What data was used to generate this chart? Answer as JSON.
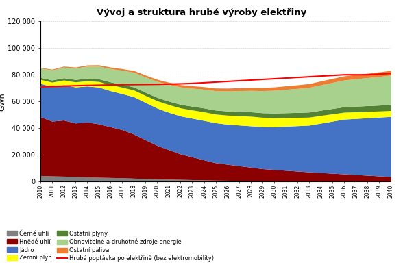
{
  "title": "Vývoj a struktura hrubé výroby elektřiny",
  "ylabel": "GWh",
  "years": [
    2010,
    2011,
    2012,
    2013,
    2014,
    2015,
    2016,
    2017,
    2018,
    2019,
    2020,
    2021,
    2022,
    2023,
    2024,
    2025,
    2026,
    2027,
    2028,
    2029,
    2030,
    2031,
    2032,
    2033,
    2034,
    2035,
    2036,
    2037,
    2038,
    2039,
    2040
  ],
  "cerne_uhli": [
    4500,
    4200,
    4000,
    3800,
    3500,
    3200,
    3000,
    2800,
    2500,
    2200,
    2000,
    1800,
    1600,
    1400,
    1200,
    1000,
    900,
    800,
    700,
    600,
    500,
    400,
    300,
    200,
    200,
    200,
    200,
    200,
    200,
    200,
    200
  ],
  "hnede_uhli": [
    44000,
    41000,
    42000,
    40000,
    41000,
    40000,
    38000,
    36000,
    33000,
    29000,
    25000,
    22000,
    19000,
    17000,
    15000,
    13000,
    12000,
    11000,
    10000,
    9000,
    8500,
    8000,
    7500,
    7000,
    6500,
    6000,
    5500,
    5000,
    4500,
    4000,
    3500
  ],
  "jadro": [
    25000,
    26000,
    26500,
    27000,
    27000,
    27500,
    27000,
    27000,
    28000,
    28000,
    28000,
    28000,
    28500,
    29000,
    29500,
    30000,
    30000,
    30500,
    31000,
    31500,
    32000,
    33000,
    34000,
    35000,
    37000,
    39000,
    41000,
    42000,
    43000,
    44000,
    45000
  ],
  "zemni_plyn": [
    3000,
    3200,
    3500,
    3800,
    4000,
    4200,
    4500,
    4800,
    5000,
    5200,
    5500,
    5800,
    6000,
    6200,
    6500,
    6500,
    6800,
    7000,
    7200,
    7000,
    6800,
    6500,
    6200,
    6000,
    5800,
    5500,
    5200,
    5000,
    4800,
    4600,
    4500
  ],
  "ostatni_plyny": [
    1500,
    1600,
    1700,
    1800,
    1900,
    2000,
    2100,
    2200,
    2300,
    2400,
    2500,
    2600,
    2700,
    2800,
    2900,
    3000,
    3100,
    3200,
    3300,
    3400,
    3500,
    3600,
    3700,
    3800,
    3900,
    4000,
    4100,
    4200,
    4300,
    4400,
    4500
  ],
  "obnovitelne": [
    7000,
    7500,
    8000,
    8500,
    9000,
    9500,
    10000,
    10500,
    11000,
    11500,
    12000,
    12500,
    13000,
    13500,
    14000,
    14500,
    15000,
    15500,
    16000,
    16500,
    17000,
    17500,
    18000,
    18500,
    19000,
    19500,
    20000,
    20500,
    21000,
    21500,
    22000
  ],
  "ostatni_paliva": [
    500,
    600,
    700,
    800,
    900,
    1000,
    1100,
    1200,
    1300,
    1400,
    1500,
    1600,
    1700,
    1800,
    1900,
    2000,
    2100,
    2200,
    2300,
    2400,
    2500,
    2600,
    2700,
    2800,
    2900,
    3000,
    3100,
    3200,
    3300,
    3400,
    3500
  ],
  "hruba_poptavka": [
    71000,
    71200,
    71500,
    71800,
    72000,
    72200,
    72400,
    72500,
    72600,
    72700,
    72800,
    73000,
    73200,
    73500,
    74000,
    74500,
    75000,
    75500,
    76000,
    76500,
    77000,
    77500,
    78000,
    78500,
    79000,
    79500,
    80000,
    80000,
    80000,
    80500,
    81000
  ],
  "colors": {
    "cerne_uhli": "#808080",
    "hnede_uhli": "#8B0000",
    "jadro": "#4472C4",
    "zemni_plyn": "#FFFF00",
    "ostatni_plyny": "#548235",
    "obnovitelne": "#A9D18E",
    "ostatni_paliva": "#ED7D31",
    "hruba_poptavka": "#FF0000"
  },
  "legend_labels": {
    "cerne_uhli": "Černé uhlí",
    "hnede_uhli": "Hnědé uhlí",
    "jadro": "Jádro",
    "zemni_plyn": "Zemní plyn",
    "ostatni_plyny": "Ostatní plyny",
    "obnovitelne": "Obnovitelné a druhotné zdroje energie",
    "ostatni_paliva": "Ostatní paliva",
    "hruba_poptavka": "Hrubá poptávka po elektřině (bez elektromobility)"
  },
  "ylim": [
    0,
    120000
  ],
  "yticks": [
    0,
    20000,
    40000,
    60000,
    80000,
    100000,
    120000
  ],
  "ytick_labels": [
    "0",
    "20 000",
    "40 000",
    "60 000",
    "80 000",
    "100 000",
    "120 000"
  ]
}
